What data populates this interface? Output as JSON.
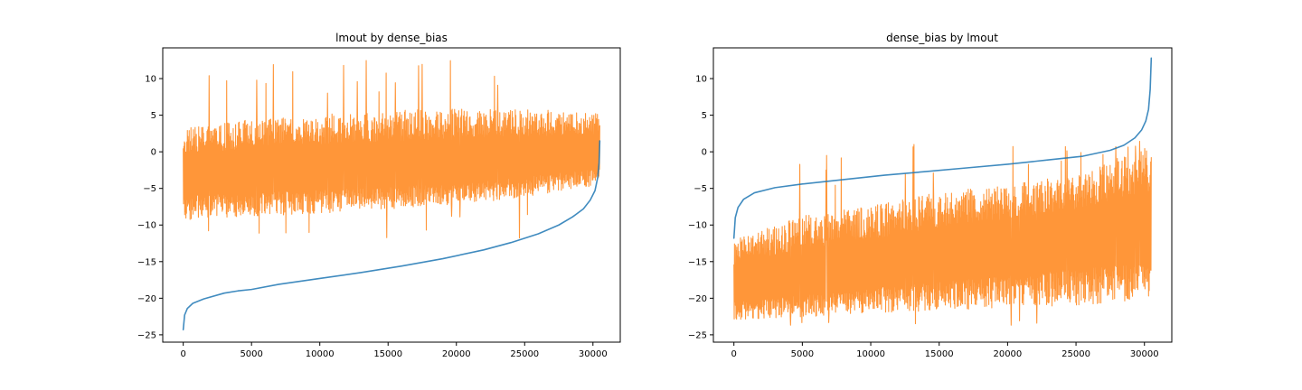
{
  "chart_data": [
    {
      "type": "line",
      "title": "lmout by dense_bias",
      "xlabel": "",
      "ylabel": "",
      "xlim": [
        -1500,
        32000
      ],
      "ylim": [
        -26,
        14.2
      ],
      "xticks": [
        0,
        5000,
        10000,
        15000,
        20000,
        25000,
        30000
      ],
      "yticks": [
        -25,
        -20,
        -15,
        -10,
        -5,
        0,
        5,
        10
      ],
      "grid": false,
      "series": [
        {
          "color": "#1f77b4",
          "x": [
            0,
            100,
            300,
            700,
            1500,
            3000,
            4000,
            5000,
            7000,
            10000,
            13000,
            16000,
            19000,
            22000,
            24000,
            26000,
            27500,
            28500,
            29300,
            29800,
            30150,
            30350,
            30450,
            30500
          ],
          "y": [
            -24.3,
            -22.3,
            -21.4,
            -20.7,
            -20.1,
            -19.3,
            -19.0,
            -18.8,
            -18.1,
            -17.3,
            -16.5,
            -15.6,
            -14.6,
            -13.4,
            -12.4,
            -11.2,
            -10.0,
            -8.9,
            -7.8,
            -6.6,
            -5.3,
            -3.5,
            -1.5,
            1.5
          ]
        },
        {
          "color": "#ff7f0e",
          "noisy": true,
          "x": [
            0,
            5000,
            10000,
            15000,
            20000,
            25000,
            30500
          ],
          "center": [
            -3.2,
            -2.9,
            -2.5,
            -2.2,
            -1.8,
            -1.1,
            -0.3
          ],
          "lower": [
            -9.3,
            -8.8,
            -8.4,
            -7.8,
            -7.3,
            -6.2,
            -4.5
          ],
          "upper": [
            3.2,
            4.4,
            5.1,
            5.6,
            5.9,
            6.0,
            5.2
          ],
          "max_spike": 12.8,
          "min_spike": -11.8
        }
      ]
    },
    {
      "type": "line",
      "title": "dense_bias by lmout",
      "xlabel": "",
      "ylabel": "",
      "xlim": [
        -1500,
        32000
      ],
      "ylim": [
        -26,
        14.2
      ],
      "xticks": [
        0,
        5000,
        10000,
        15000,
        20000,
        25000,
        30000
      ],
      "yticks": [
        -25,
        -20,
        -15,
        -10,
        -5,
        0,
        5,
        10
      ],
      "grid": false,
      "series": [
        {
          "color": "#1f77b4",
          "x": [
            0,
            100,
            300,
            700,
            1500,
            3000,
            5000,
            8000,
            11000,
            14000,
            17000,
            20000,
            23000,
            25500,
            27500,
            28500,
            29300,
            29800,
            30100,
            30300,
            30420,
            30500
          ],
          "y": [
            -11.8,
            -9.0,
            -7.6,
            -6.5,
            -5.6,
            -4.9,
            -4.4,
            -3.8,
            -3.2,
            -2.7,
            -2.2,
            -1.7,
            -1.1,
            -0.6,
            0.2,
            0.9,
            1.9,
            3.0,
            4.2,
            5.8,
            8.5,
            12.8
          ]
        },
        {
          "color": "#ff7f0e",
          "noisy": true,
          "x": [
            0,
            5000,
            10000,
            15000,
            20000,
            25000,
            30500
          ],
          "center": [
            -18.3,
            -17.1,
            -15.8,
            -14.4,
            -13.2,
            -11.8,
            -10.8
          ],
          "lower": [
            -23.0,
            -22.6,
            -22.0,
            -21.7,
            -21.3,
            -21.0,
            -20.2
          ],
          "upper": [
            -12.0,
            -8.7,
            -7.4,
            -5.5,
            -4.5,
            -3.1,
            0.9
          ],
          "max_spike": 1.7,
          "min_spike": -24.1
        }
      ]
    }
  ]
}
